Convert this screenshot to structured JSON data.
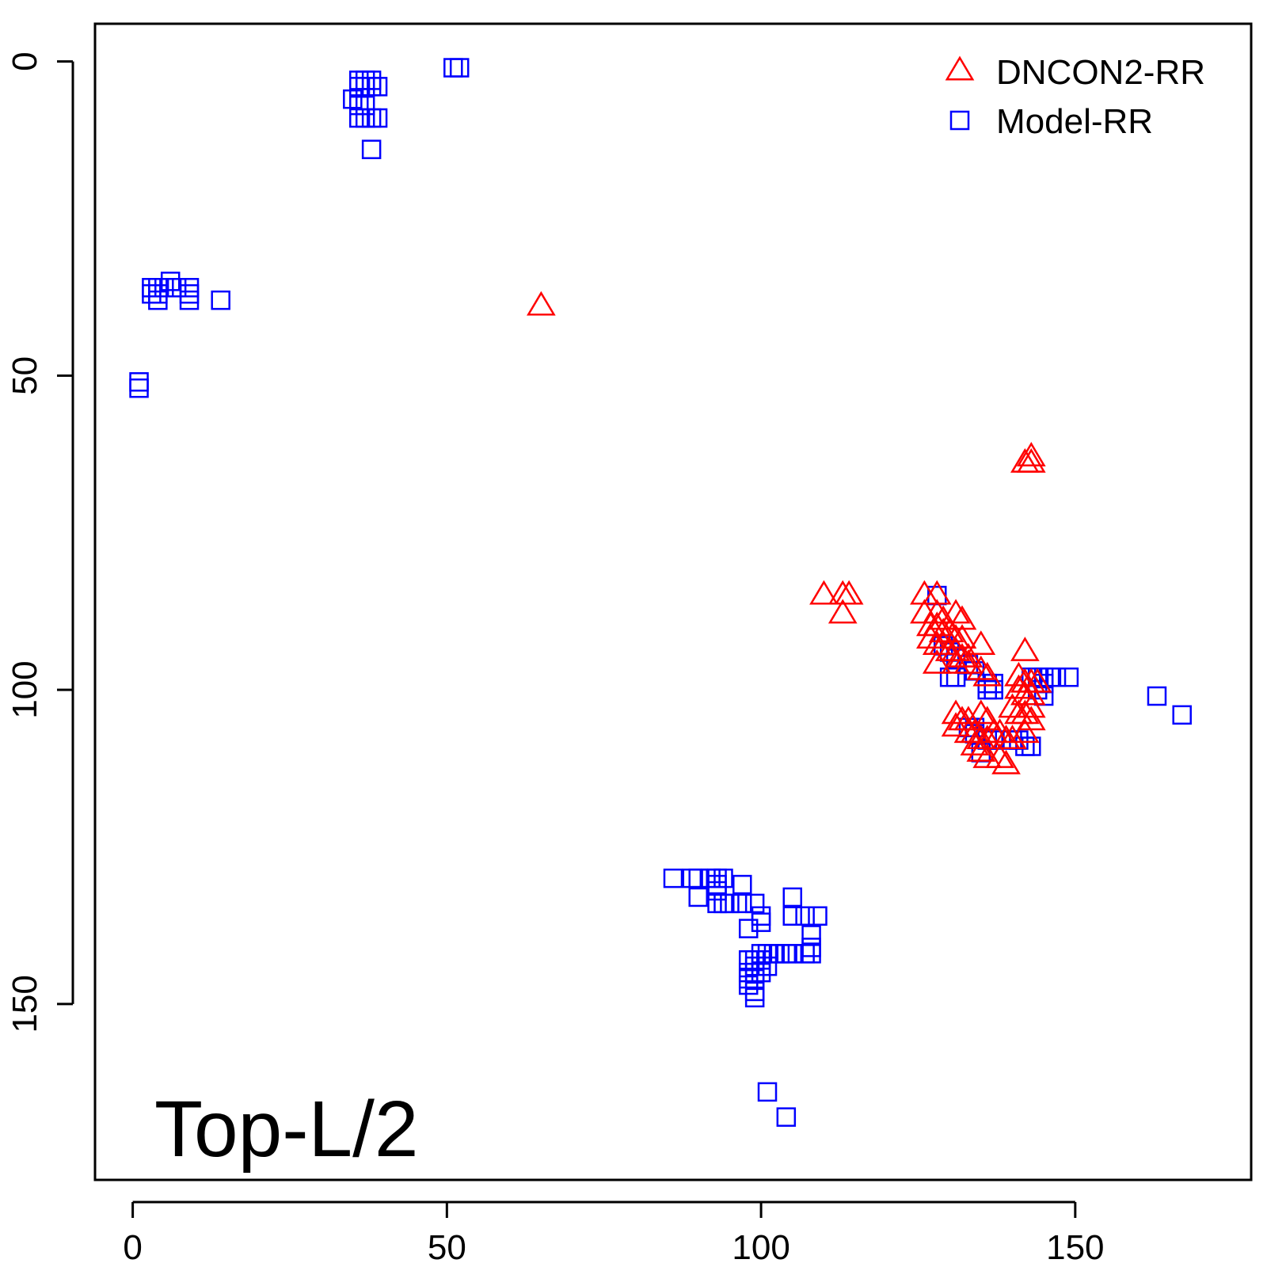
{
  "chart_data": {
    "type": "scatter",
    "title": "",
    "xlabel": "",
    "ylabel": "",
    "xlim": [
      -6,
      178
    ],
    "ylim": [
      -6,
      178
    ],
    "y_reversed": true,
    "x_ticks": [
      0,
      50,
      100,
      150
    ],
    "y_ticks": [
      0,
      50,
      100,
      150
    ],
    "grid": false,
    "legend_position": "top-right",
    "annotation": "Top-L/2",
    "series": [
      {
        "name": "DNCON2-RR",
        "marker": "triangle",
        "color": "#ff0000",
        "points": [
          [
            65,
            39
          ],
          [
            143,
            63
          ],
          [
            143,
            64
          ],
          [
            142,
            64
          ],
          [
            110,
            85
          ],
          [
            113,
            85
          ],
          [
            114,
            85
          ],
          [
            113,
            88
          ],
          [
            126,
            85
          ],
          [
            128,
            85
          ],
          [
            126,
            88
          ],
          [
            128,
            88
          ],
          [
            129,
            89
          ],
          [
            131,
            88
          ],
          [
            132,
            89
          ],
          [
            127,
            90
          ],
          [
            128,
            90
          ],
          [
            129,
            91
          ],
          [
            130,
            91
          ],
          [
            131,
            92
          ],
          [
            132,
            92
          ],
          [
            127,
            92
          ],
          [
            128,
            93
          ],
          [
            129,
            93
          ],
          [
            130,
            94
          ],
          [
            131,
            94
          ],
          [
            132,
            95
          ],
          [
            133,
            95
          ],
          [
            135,
            93
          ],
          [
            142,
            94
          ],
          [
            128,
            96
          ],
          [
            131,
            96
          ],
          [
            133,
            96
          ],
          [
            135,
            97
          ],
          [
            136,
            98
          ],
          [
            141,
            98
          ],
          [
            142,
            99
          ],
          [
            143,
            99
          ],
          [
            144,
            99
          ],
          [
            141,
            100
          ],
          [
            142,
            101
          ],
          [
            143,
            101
          ],
          [
            140,
            103
          ],
          [
            141,
            104
          ],
          [
            142,
            104
          ],
          [
            143,
            105
          ],
          [
            131,
            104
          ],
          [
            132,
            105
          ],
          [
            133,
            105
          ],
          [
            135,
            104
          ],
          [
            136,
            105
          ],
          [
            131,
            106
          ],
          [
            133,
            107
          ],
          [
            134,
            107
          ],
          [
            135,
            108
          ],
          [
            136,
            108
          ],
          [
            137,
            107
          ],
          [
            138,
            107
          ],
          [
            139,
            108
          ],
          [
            140,
            108
          ],
          [
            142,
            107
          ],
          [
            134,
            109
          ],
          [
            135,
            110
          ],
          [
            136,
            111
          ],
          [
            138,
            111
          ],
          [
            139,
            112
          ],
          [
            143,
            103
          ]
        ]
      },
      {
        "name": "Model-RR",
        "marker": "square",
        "color": "#0000ff",
        "points": [
          [
            51,
            1
          ],
          [
            52,
            1
          ],
          [
            36,
            3
          ],
          [
            37,
            3
          ],
          [
            38,
            3
          ],
          [
            36,
            4
          ],
          [
            37,
            4
          ],
          [
            38,
            4
          ],
          [
            39,
            4
          ],
          [
            35,
            6
          ],
          [
            36,
            7
          ],
          [
            37,
            7
          ],
          [
            36,
            9
          ],
          [
            37,
            9
          ],
          [
            38,
            9
          ],
          [
            39,
            9
          ],
          [
            38,
            14
          ],
          [
            6,
            35
          ],
          [
            3,
            36
          ],
          [
            4,
            36
          ],
          [
            5,
            36
          ],
          [
            7,
            36
          ],
          [
            9,
            36
          ],
          [
            3,
            37
          ],
          [
            4,
            37
          ],
          [
            9,
            37
          ],
          [
            4,
            38
          ],
          [
            9,
            38
          ],
          [
            14,
            38
          ],
          [
            1,
            51
          ],
          [
            1,
            52
          ],
          [
            128,
            85
          ],
          [
            129,
            93
          ],
          [
            130,
            94
          ],
          [
            131,
            95
          ],
          [
            133,
            96
          ],
          [
            134,
            97
          ],
          [
            130,
            98
          ],
          [
            131,
            98
          ],
          [
            136,
            99
          ],
          [
            137,
            99
          ],
          [
            136,
            100
          ],
          [
            137,
            100
          ],
          [
            143,
            98
          ],
          [
            144,
            98
          ],
          [
            145,
            98
          ],
          [
            146,
            98
          ],
          [
            147,
            98
          ],
          [
            149,
            98
          ],
          [
            145,
            99
          ],
          [
            144,
            100
          ],
          [
            145,
            101
          ],
          [
            163,
            101
          ],
          [
            167,
            104
          ],
          [
            133,
            106
          ],
          [
            134,
            106
          ],
          [
            134,
            107
          ],
          [
            136,
            108
          ],
          [
            140,
            108
          ],
          [
            141,
            108
          ],
          [
            142,
            109
          ],
          [
            143,
            109
          ],
          [
            135,
            110
          ],
          [
            137,
            108
          ],
          [
            86,
            130
          ],
          [
            89,
            130
          ],
          [
            90,
            130
          ],
          [
            92,
            130
          ],
          [
            93,
            130
          ],
          [
            94,
            130
          ],
          [
            97,
            131
          ],
          [
            93,
            131
          ],
          [
            93,
            132
          ],
          [
            90,
            133
          ],
          [
            93,
            134
          ],
          [
            94,
            134
          ],
          [
            95,
            134
          ],
          [
            97,
            134
          ],
          [
            99,
            134
          ],
          [
            105,
            133
          ],
          [
            105,
            136
          ],
          [
            107,
            136
          ],
          [
            109,
            136
          ],
          [
            100,
            136
          ],
          [
            100,
            137
          ],
          [
            98,
            138
          ],
          [
            108,
            139
          ],
          [
            108,
            141
          ],
          [
            103,
            142
          ],
          [
            104,
            142
          ],
          [
            105,
            142
          ],
          [
            107,
            142
          ],
          [
            108,
            142
          ],
          [
            100,
            142
          ],
          [
            101,
            142
          ],
          [
            102,
            142
          ],
          [
            98,
            143
          ],
          [
            99,
            143
          ],
          [
            100,
            143
          ],
          [
            99,
            144
          ],
          [
            100,
            144
          ],
          [
            101,
            144
          ],
          [
            98,
            145
          ],
          [
            99,
            145
          ],
          [
            100,
            145
          ],
          [
            98,
            146
          ],
          [
            99,
            146
          ],
          [
            98,
            147
          ],
          [
            99,
            148
          ],
          [
            99,
            149
          ],
          [
            101,
            164
          ],
          [
            104,
            168
          ]
        ]
      }
    ]
  }
}
